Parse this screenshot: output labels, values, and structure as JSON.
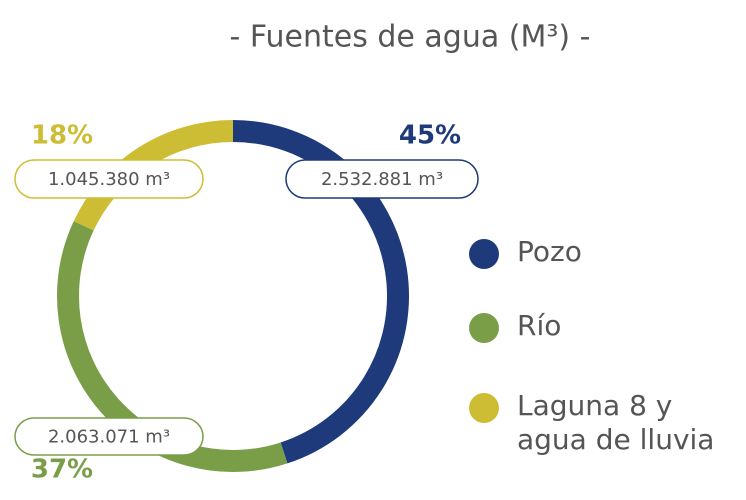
{
  "chart_data": {
    "type": "pie",
    "donut": true,
    "title": "- Fuentes de agua (M³) -",
    "categories": [
      "Pozo",
      "Río",
      "Laguna 8 y agua de lluvia"
    ],
    "values": [
      45,
      37,
      18
    ],
    "value_labels": [
      "45%",
      "37%",
      "18%"
    ],
    "amount_labels": [
      "2.532.881 m³",
      "2.063.071 m³",
      "1.045.380 m³"
    ],
    "colors": [
      "#1f3a7a",
      "#7a9e48",
      "#cdbd35"
    ]
  }
}
